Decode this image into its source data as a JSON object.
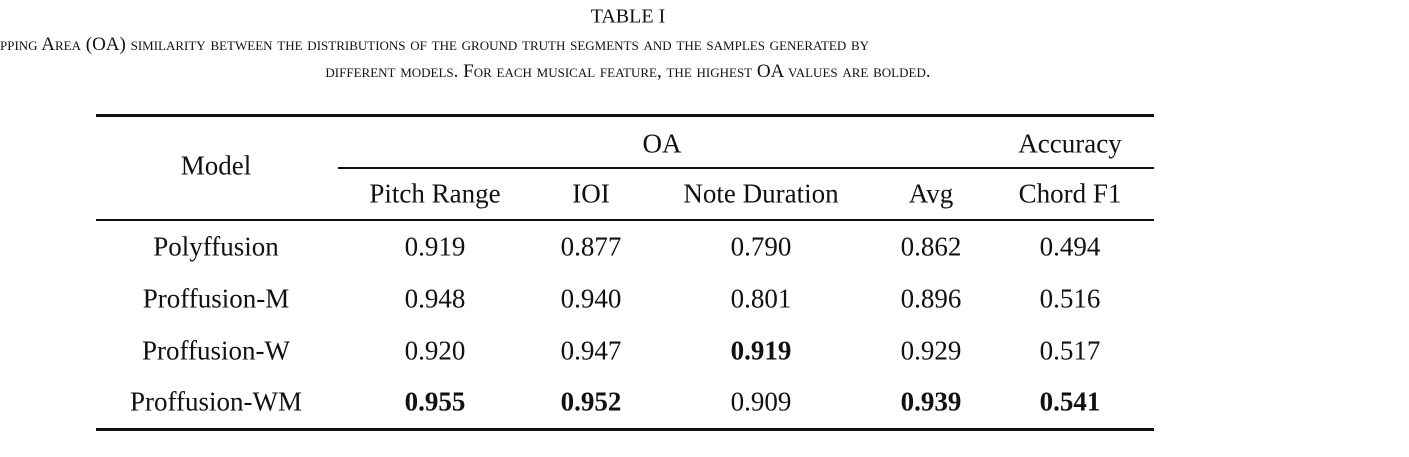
{
  "title": "TABLE I",
  "caption": [
    "pping Area (OA) similarity between the distributions of the ground truth segments and the samples generated by",
    "different models. For each musical feature, the highest OA values are bolded."
  ],
  "table": {
    "header": {
      "model": "Model",
      "groups": [
        "OA",
        "Accuracy"
      ],
      "columns": [
        "Pitch Range",
        "IOI",
        "Note Duration",
        "Avg",
        "Chord F1"
      ]
    },
    "rows": [
      {
        "model": "Polyffusion",
        "values": [
          "0.919",
          "0.877",
          "0.790",
          "0.862",
          "0.494"
        ],
        "bold": [
          false,
          false,
          false,
          false,
          false
        ]
      },
      {
        "model": "Proffusion-M",
        "values": [
          "0.948",
          "0.940",
          "0.801",
          "0.896",
          "0.516"
        ],
        "bold": [
          false,
          false,
          false,
          false,
          false
        ]
      },
      {
        "model": "Proffusion-W",
        "values": [
          "0.920",
          "0.947",
          "0.919",
          "0.929",
          "0.517"
        ],
        "bold": [
          false,
          false,
          true,
          false,
          false
        ]
      },
      {
        "model": "Proffusion-WM",
        "values": [
          "0.955",
          "0.952",
          "0.909",
          "0.939",
          "0.541"
        ],
        "bold": [
          true,
          true,
          false,
          true,
          true
        ]
      }
    ]
  }
}
